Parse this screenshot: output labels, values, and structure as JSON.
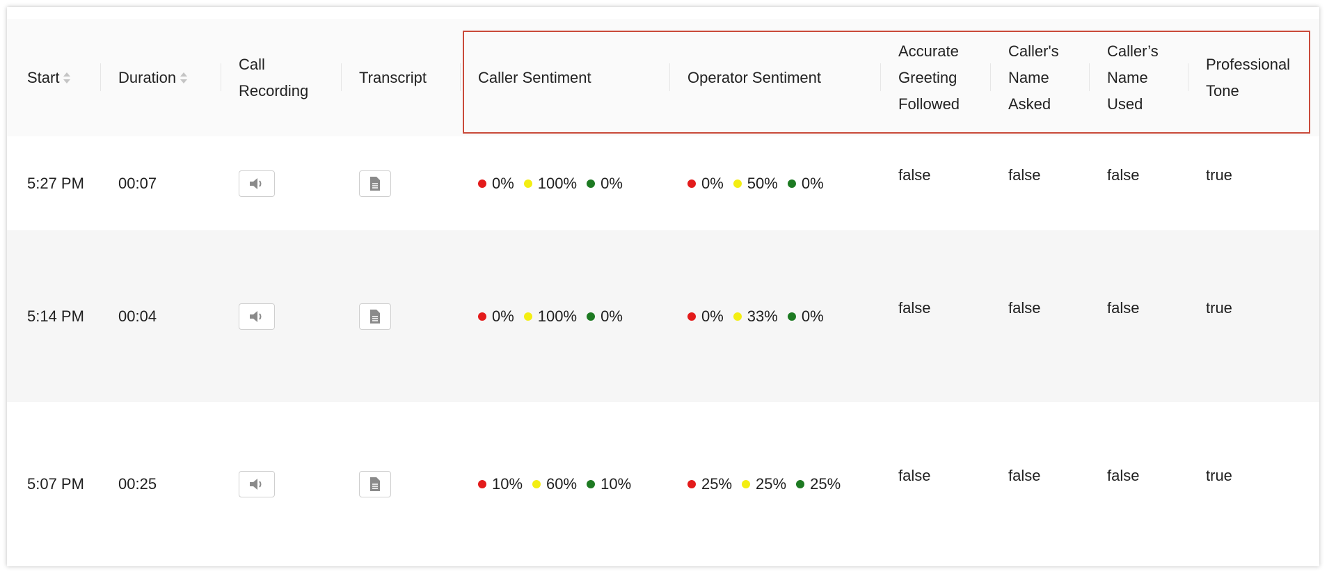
{
  "table": {
    "headers": [
      "Start",
      "Duration",
      "Call Recording",
      "Transcript",
      "Caller Sentiment",
      "Operator Sentiment",
      "Accurate Greeting Followed",
      "Caller's Name Asked",
      "Caller’s Name Used",
      "Professional Tone"
    ],
    "rows": [
      {
        "start": "5:27 PM",
        "duration": "00:07",
        "caller_sentiment": [
          "0%",
          "100%",
          "0%"
        ],
        "operator_sentiment": [
          "0%",
          "50%",
          "0%"
        ],
        "flags": [
          "false",
          "false",
          "false",
          "true"
        ]
      },
      {
        "start": "5:14 PM",
        "duration": "00:04",
        "caller_sentiment": [
          "0%",
          "100%",
          "0%"
        ],
        "operator_sentiment": [
          "0%",
          "33%",
          "0%"
        ],
        "flags": [
          "false",
          "false",
          "false",
          "true"
        ]
      },
      {
        "start": "5:07 PM",
        "duration": "00:25",
        "caller_sentiment": [
          "10%",
          "60%",
          "10%"
        ],
        "operator_sentiment": [
          "25%",
          "25%",
          "25%"
        ],
        "flags": [
          "false",
          "false",
          "false",
          "true"
        ]
      }
    ]
  }
}
